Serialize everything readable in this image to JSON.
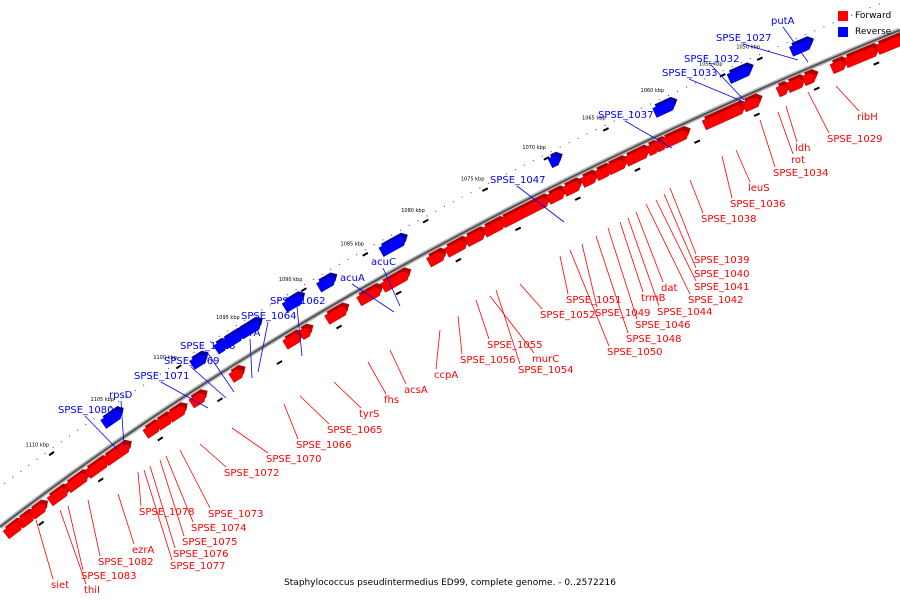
{
  "caption": "Staphylococcus pseudintermedius ED99, complete genome. - 0..2572216",
  "legend": [
    {
      "label": "Forward",
      "color": "#ff0000"
    },
    {
      "label": "Reverse",
      "color": "#0000ff"
    }
  ],
  "colors": {
    "forward": "#ff0000",
    "reverse": "#0000ff",
    "axis": "#777777"
  },
  "kbp_labels": [
    "1050 kbp",
    "1055 kbp",
    "1060 kbp",
    "1065 kbp",
    "1070 kbp",
    "1075 kbp",
    "1080 kbp",
    "1085 kbp",
    "1090 kbp",
    "1095 kbp",
    "1100 kbp",
    "1105 kbp",
    "1110 kbp"
  ],
  "reverse_genes": [
    "putA",
    "SPSE_1027",
    "SPSE_1032",
    "SPSE_1033",
    "SPSE_1037",
    "SPSE_1047",
    "acuC",
    "acuA",
    "SPSE_1062",
    "SPSE_1064",
    "serA",
    "SPSE_1068",
    "SPSE_1069",
    "SPSE_1071",
    "rpsD",
    "SPSE_1080"
  ],
  "forward_genes": [
    "ribH",
    "SPSE_1029",
    "ldh",
    "rot",
    "SPSE_1034",
    "leuS",
    "SPSE_1036",
    "SPSE_1038",
    "SPSE_1039",
    "SPSE_1040",
    "SPSE_1041",
    "dat",
    "SPSE_1042",
    "trmB",
    "SPSE_1044",
    "SPSE_1046",
    "SPSE_1049",
    "SPSE_1048",
    "SPSE_1051",
    "SPSE_1050",
    "SPSE_1052",
    "SPSE_1055",
    "murC",
    "SPSE_1054",
    "SPSE_1056",
    "ccpA",
    "acsA",
    "fhs",
    "tyrS",
    "SPSE_1065",
    "SPSE_1066",
    "SPSE_1070",
    "SPSE_1072",
    "SPSE_1073",
    "SPSE_1074",
    "SPSE_1075",
    "SPSE_1076",
    "SPSE_1077",
    "SPSE_1078",
    "ezrA",
    "SPSE_1082",
    "SPSE_1083",
    "thiI",
    "siet"
  ]
}
